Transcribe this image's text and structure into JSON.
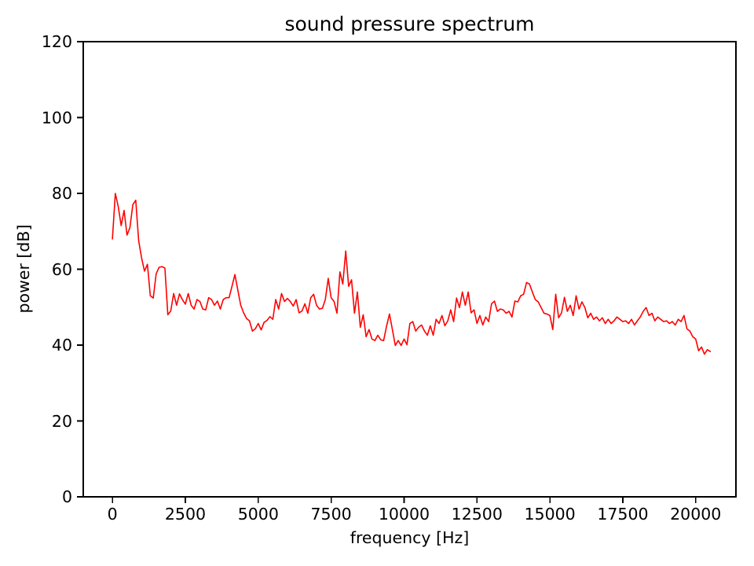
{
  "figure": {
    "background_color": "#ffffff",
    "text_color": "#000000"
  },
  "chart_data": {
    "type": "line",
    "title": "sound pressure spectrum",
    "xlabel": "frequency [Hz]",
    "ylabel": "power [dB]",
    "xlim": [
      -1000,
      21380
    ],
    "ylim": [
      0,
      120
    ],
    "xticks": [
      0,
      2500,
      5000,
      7500,
      10000,
      12500,
      15000,
      17500,
      20000
    ],
    "yticks": [
      0,
      20,
      40,
      60,
      80,
      100,
      120
    ],
    "grid": false,
    "legend": null,
    "line_color": "#ff0000",
    "axis_color": "#000000",
    "series": [
      {
        "name": "sound pressure spectrum",
        "x_start": 0,
        "x_step": 100,
        "values": [
          68.0,
          80.0,
          76.5,
          71.5,
          75.5,
          69.0,
          71.0,
          77.0,
          78.2,
          67.5,
          63.0,
          59.5,
          61.3,
          53.0,
          52.4,
          58.8,
          60.5,
          60.7,
          60.3,
          48.0,
          49.0,
          53.6,
          50.5,
          53.5,
          52.0,
          50.8,
          53.6,
          50.5,
          49.5,
          52.0,
          51.5,
          49.5,
          49.3,
          52.5,
          52.0,
          50.5,
          51.6,
          49.5,
          52.0,
          52.5,
          52.5,
          55.5,
          58.6,
          54.5,
          50.5,
          48.5,
          47.0,
          46.4,
          43.7,
          44.3,
          45.7,
          44.0,
          46.0,
          46.5,
          47.5,
          46.8,
          52.0,
          49.5,
          53.6,
          51.5,
          52.3,
          51.5,
          50.3,
          52.0,
          48.5,
          49.0,
          50.9,
          48.4,
          52.5,
          53.4,
          50.5,
          49.5,
          49.7,
          52.0,
          57.6,
          52.5,
          51.5,
          48.4,
          59.3,
          56.1,
          64.8,
          55.5,
          57.2,
          48.4,
          54.0,
          44.7,
          48.0,
          42.2,
          44.1,
          41.6,
          41.2,
          42.6,
          41.4,
          41.2,
          45.0,
          48.2,
          44.1,
          39.9,
          41.2,
          39.9,
          41.6,
          40.1,
          45.7,
          46.2,
          43.7,
          44.7,
          45.3,
          43.7,
          42.6,
          45.1,
          42.6,
          46.8,
          45.7,
          47.8,
          45.1,
          46.4,
          49.3,
          46.2,
          52.4,
          49.9,
          54.0,
          50.5,
          54.0,
          48.5,
          49.3,
          45.7,
          47.8,
          45.3,
          47.4,
          46.2,
          50.9,
          51.6,
          48.9,
          49.5,
          49.3,
          48.4,
          48.9,
          47.4,
          51.6,
          51.4,
          53.0,
          53.4,
          56.5,
          56.1,
          54.0,
          52.0,
          51.4,
          49.9,
          48.4,
          48.2,
          47.8,
          44.1,
          53.4,
          47.2,
          48.5,
          52.6,
          48.9,
          50.5,
          47.8,
          53.0,
          49.5,
          51.4,
          49.9,
          47.2,
          48.4,
          46.8,
          47.4,
          46.4,
          47.2,
          45.7,
          46.8,
          45.7,
          46.4,
          47.4,
          46.8,
          46.2,
          46.4,
          45.7,
          46.8,
          45.3,
          46.4,
          47.4,
          48.9,
          49.9,
          47.8,
          48.4,
          46.4,
          47.4,
          46.8,
          46.2,
          46.4,
          45.7,
          46.2,
          45.3,
          46.8,
          46.2,
          47.8,
          44.3,
          43.7,
          42.2,
          41.6,
          38.5,
          39.5,
          37.6,
          38.8,
          38.3
        ]
      }
    ]
  }
}
